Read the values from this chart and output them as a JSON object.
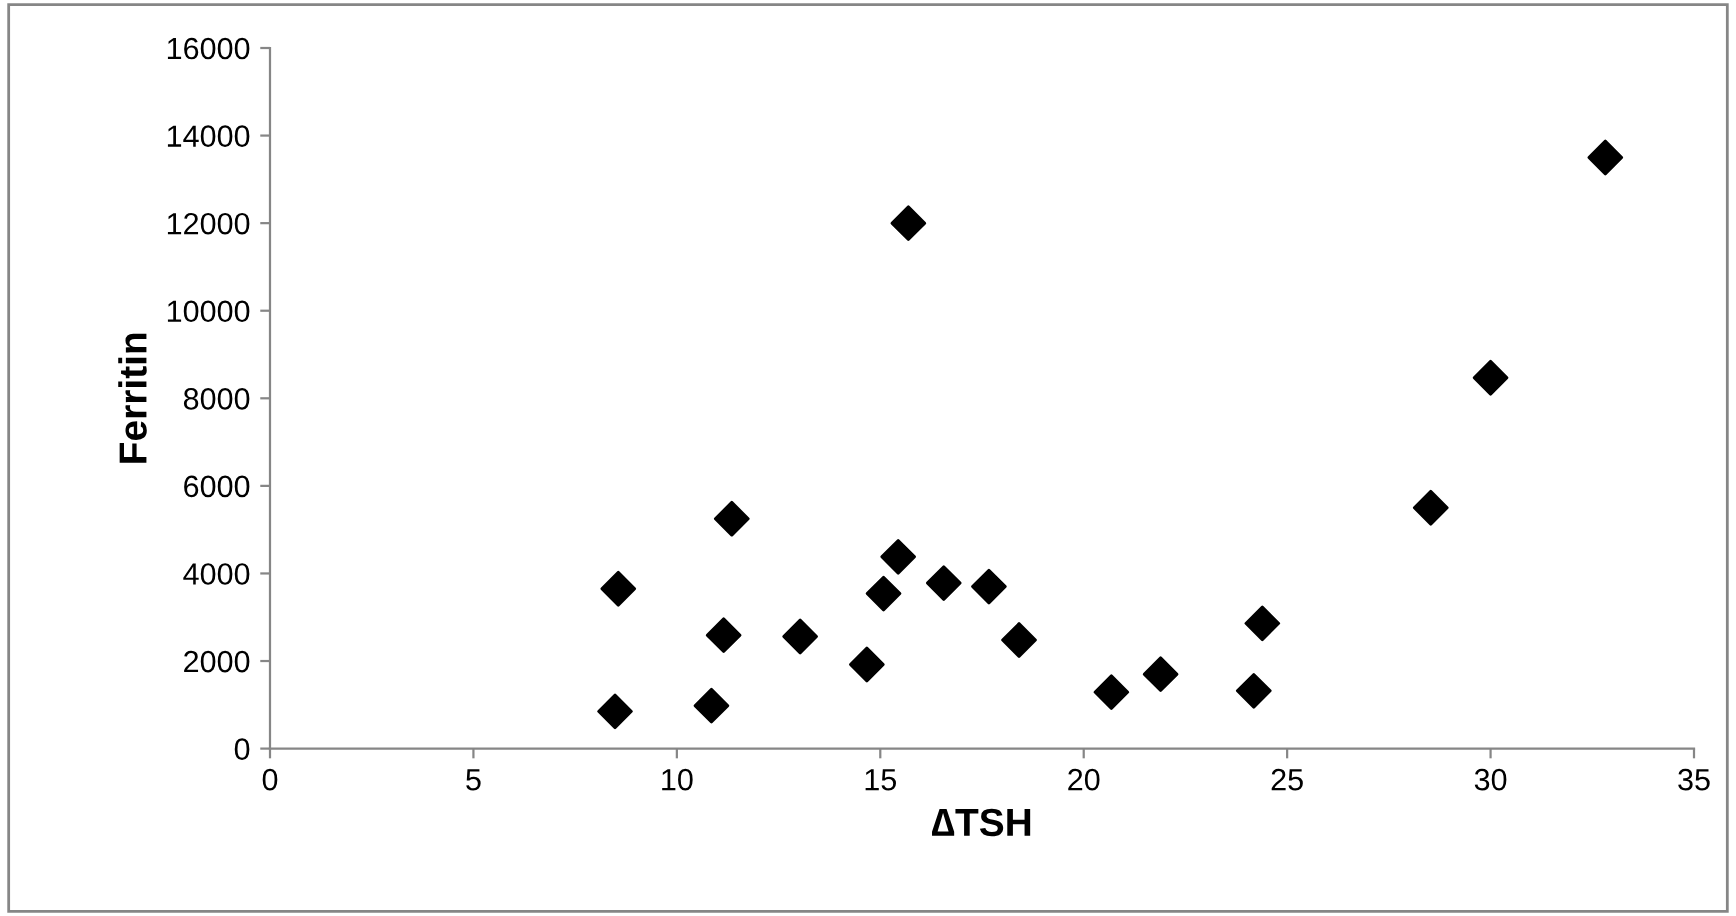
{
  "chart_data": {
    "type": "scatter",
    "xlabel": "∆TSH",
    "ylabel": "Ferritin",
    "x": [
      8.56,
      8.48,
      11.35,
      10.85,
      11.15,
      13.03,
      14.67,
      15.08,
      15.44,
      16.56,
      17.67,
      18.41,
      20.68,
      21.89,
      24.18,
      24.39,
      28.53,
      15.69,
      30.0,
      32.82
    ],
    "series": [
      {
        "color": "#000000",
        "values": [
          3650,
          850,
          5250,
          980,
          2590,
          2560,
          1920,
          3540,
          4380,
          3780,
          3700,
          2480,
          1290,
          1700,
          1320,
          2860,
          5500,
          12000,
          8470,
          13500
        ]
      }
    ],
    "marker": "diamond",
    "xlim": [
      0,
      35
    ],
    "xticks": [
      0,
      5,
      10,
      15,
      20,
      25,
      30,
      35
    ],
    "ylim": [
      0,
      16000
    ],
    "yticks": [
      0,
      2000,
      4000,
      6000,
      8000,
      10000,
      12000,
      14000,
      16000
    ],
    "grid": false,
    "legend": false
  }
}
